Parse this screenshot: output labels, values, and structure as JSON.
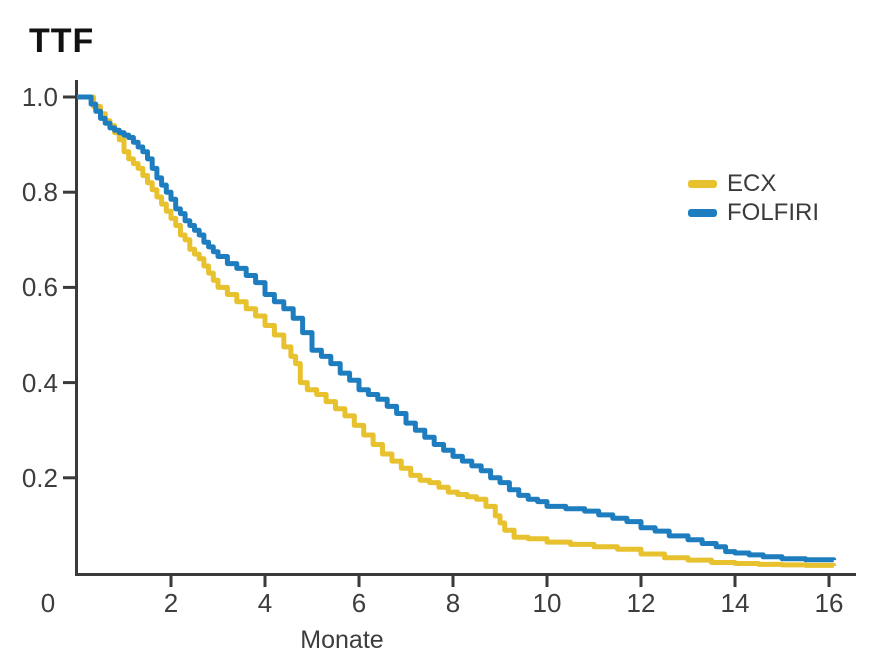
{
  "title": "TTF",
  "colors": {
    "background": "#ffffff",
    "axis": "#3a3a3a",
    "text": "#3d3d3d",
    "ecx": "#e8c12e",
    "folfiri": "#1e7dbe"
  },
  "legend": {
    "items": [
      {
        "label": "ECX",
        "color": "#e8c12e"
      },
      {
        "label": "FOLFIRI",
        "color": "#1e7dbe"
      }
    ]
  },
  "chart_data": {
    "type": "line",
    "subtype": "kaplan-meier-step",
    "title": "TTF",
    "xlabel": "Monate",
    "ylabel": "",
    "xlim": [
      0,
      16.6
    ],
    "ylim": [
      0,
      1.04
    ],
    "x_ticks": [
      0,
      2,
      4,
      6,
      8,
      10,
      12,
      14,
      16
    ],
    "x_tick_labels": [
      "0",
      "2",
      "4",
      "6",
      "8",
      "10",
      "12",
      "14",
      "16"
    ],
    "y_ticks": [
      0.2,
      0.4,
      0.6,
      0.8,
      1.0
    ],
    "y_tick_labels": [
      "0.2",
      "0.4",
      "0.6",
      "0.8",
      "1.0"
    ],
    "grid": false,
    "legend_position": "right",
    "series": [
      {
        "name": "ECX",
        "color": "#e8c12e",
        "points": [
          [
            0,
            1.0
          ],
          [
            0.25,
            1.0
          ],
          [
            0.35,
            0.98
          ],
          [
            0.5,
            0.965
          ],
          [
            0.6,
            0.95
          ],
          [
            0.7,
            0.94
          ],
          [
            0.8,
            0.925
          ],
          [
            0.9,
            0.91
          ],
          [
            1.0,
            0.885
          ],
          [
            1.1,
            0.87
          ],
          [
            1.2,
            0.86
          ],
          [
            1.3,
            0.85
          ],
          [
            1.4,
            0.835
          ],
          [
            1.5,
            0.82
          ],
          [
            1.6,
            0.805
          ],
          [
            1.7,
            0.79
          ],
          [
            1.8,
            0.775
          ],
          [
            1.9,
            0.76
          ],
          [
            2.0,
            0.745
          ],
          [
            2.1,
            0.73
          ],
          [
            2.2,
            0.71
          ],
          [
            2.3,
            0.7
          ],
          [
            2.4,
            0.68
          ],
          [
            2.5,
            0.67
          ],
          [
            2.6,
            0.66
          ],
          [
            2.7,
            0.645
          ],
          [
            2.8,
            0.63
          ],
          [
            2.9,
            0.615
          ],
          [
            3.0,
            0.6
          ],
          [
            3.2,
            0.585
          ],
          [
            3.4,
            0.57
          ],
          [
            3.6,
            0.555
          ],
          [
            3.8,
            0.54
          ],
          [
            4.0,
            0.52
          ],
          [
            4.2,
            0.5
          ],
          [
            4.4,
            0.475
          ],
          [
            4.55,
            0.455
          ],
          [
            4.65,
            0.44
          ],
          [
            4.75,
            0.4
          ],
          [
            4.9,
            0.385
          ],
          [
            5.1,
            0.375
          ],
          [
            5.3,
            0.36
          ],
          [
            5.5,
            0.345
          ],
          [
            5.7,
            0.33
          ],
          [
            5.9,
            0.31
          ],
          [
            6.1,
            0.29
          ],
          [
            6.3,
            0.27
          ],
          [
            6.5,
            0.25
          ],
          [
            6.7,
            0.235
          ],
          [
            6.9,
            0.22
          ],
          [
            7.1,
            0.205
          ],
          [
            7.3,
            0.195
          ],
          [
            7.5,
            0.19
          ],
          [
            7.7,
            0.18
          ],
          [
            7.9,
            0.17
          ],
          [
            8.1,
            0.165
          ],
          [
            8.3,
            0.16
          ],
          [
            8.5,
            0.155
          ],
          [
            8.7,
            0.14
          ],
          [
            8.9,
            0.12
          ],
          [
            9.0,
            0.105
          ],
          [
            9.1,
            0.09
          ],
          [
            9.3,
            0.075
          ],
          [
            9.6,
            0.072
          ],
          [
            10.0,
            0.065
          ],
          [
            10.5,
            0.06
          ],
          [
            11.0,
            0.055
          ],
          [
            11.5,
            0.05
          ],
          [
            12.0,
            0.04
          ],
          [
            12.5,
            0.032
          ],
          [
            13.0,
            0.027
          ],
          [
            13.5,
            0.022
          ],
          [
            14.0,
            0.02
          ],
          [
            14.5,
            0.018
          ],
          [
            15.0,
            0.017
          ],
          [
            15.5,
            0.016
          ],
          [
            16.1,
            0.015
          ]
        ]
      },
      {
        "name": "FOLFIRI",
        "color": "#1e7dbe",
        "points": [
          [
            0,
            1.0
          ],
          [
            0.2,
            1.0
          ],
          [
            0.3,
            0.985
          ],
          [
            0.4,
            0.97
          ],
          [
            0.5,
            0.955
          ],
          [
            0.6,
            0.945
          ],
          [
            0.7,
            0.935
          ],
          [
            0.8,
            0.93
          ],
          [
            0.9,
            0.925
          ],
          [
            1.0,
            0.92
          ],
          [
            1.1,
            0.915
          ],
          [
            1.2,
            0.905
          ],
          [
            1.3,
            0.895
          ],
          [
            1.4,
            0.885
          ],
          [
            1.5,
            0.87
          ],
          [
            1.6,
            0.85
          ],
          [
            1.7,
            0.83
          ],
          [
            1.8,
            0.815
          ],
          [
            1.9,
            0.8
          ],
          [
            2.0,
            0.785
          ],
          [
            2.1,
            0.765
          ],
          [
            2.2,
            0.755
          ],
          [
            2.3,
            0.74
          ],
          [
            2.4,
            0.73
          ],
          [
            2.5,
            0.72
          ],
          [
            2.6,
            0.71
          ],
          [
            2.7,
            0.695
          ],
          [
            2.8,
            0.685
          ],
          [
            2.9,
            0.675
          ],
          [
            3.0,
            0.665
          ],
          [
            3.2,
            0.65
          ],
          [
            3.4,
            0.64
          ],
          [
            3.6,
            0.625
          ],
          [
            3.8,
            0.61
          ],
          [
            4.0,
            0.585
          ],
          [
            4.2,
            0.57
          ],
          [
            4.4,
            0.555
          ],
          [
            4.6,
            0.535
          ],
          [
            4.8,
            0.505
          ],
          [
            5.0,
            0.468
          ],
          [
            5.2,
            0.455
          ],
          [
            5.4,
            0.44
          ],
          [
            5.6,
            0.42
          ],
          [
            5.8,
            0.405
          ],
          [
            6.0,
            0.385
          ],
          [
            6.2,
            0.375
          ],
          [
            6.4,
            0.365
          ],
          [
            6.6,
            0.35
          ],
          [
            6.8,
            0.335
          ],
          [
            7.0,
            0.315
          ],
          [
            7.2,
            0.3
          ],
          [
            7.4,
            0.285
          ],
          [
            7.6,
            0.27
          ],
          [
            7.8,
            0.258
          ],
          [
            8.0,
            0.245
          ],
          [
            8.2,
            0.235
          ],
          [
            8.4,
            0.225
          ],
          [
            8.6,
            0.215
          ],
          [
            8.8,
            0.2
          ],
          [
            9.0,
            0.19
          ],
          [
            9.2,
            0.175
          ],
          [
            9.4,
            0.163
          ],
          [
            9.6,
            0.155
          ],
          [
            9.8,
            0.15
          ],
          [
            10.0,
            0.14
          ],
          [
            10.4,
            0.135
          ],
          [
            10.8,
            0.13
          ],
          [
            11.1,
            0.122
          ],
          [
            11.4,
            0.115
          ],
          [
            11.7,
            0.108
          ],
          [
            12.0,
            0.095
          ],
          [
            12.3,
            0.088
          ],
          [
            12.6,
            0.078
          ],
          [
            13.0,
            0.07
          ],
          [
            13.3,
            0.062
          ],
          [
            13.6,
            0.055
          ],
          [
            13.8,
            0.045
          ],
          [
            14.0,
            0.042
          ],
          [
            14.3,
            0.038
          ],
          [
            14.6,
            0.034
          ],
          [
            15.0,
            0.03
          ],
          [
            15.5,
            0.028
          ],
          [
            16.1,
            0.027
          ]
        ]
      }
    ]
  }
}
